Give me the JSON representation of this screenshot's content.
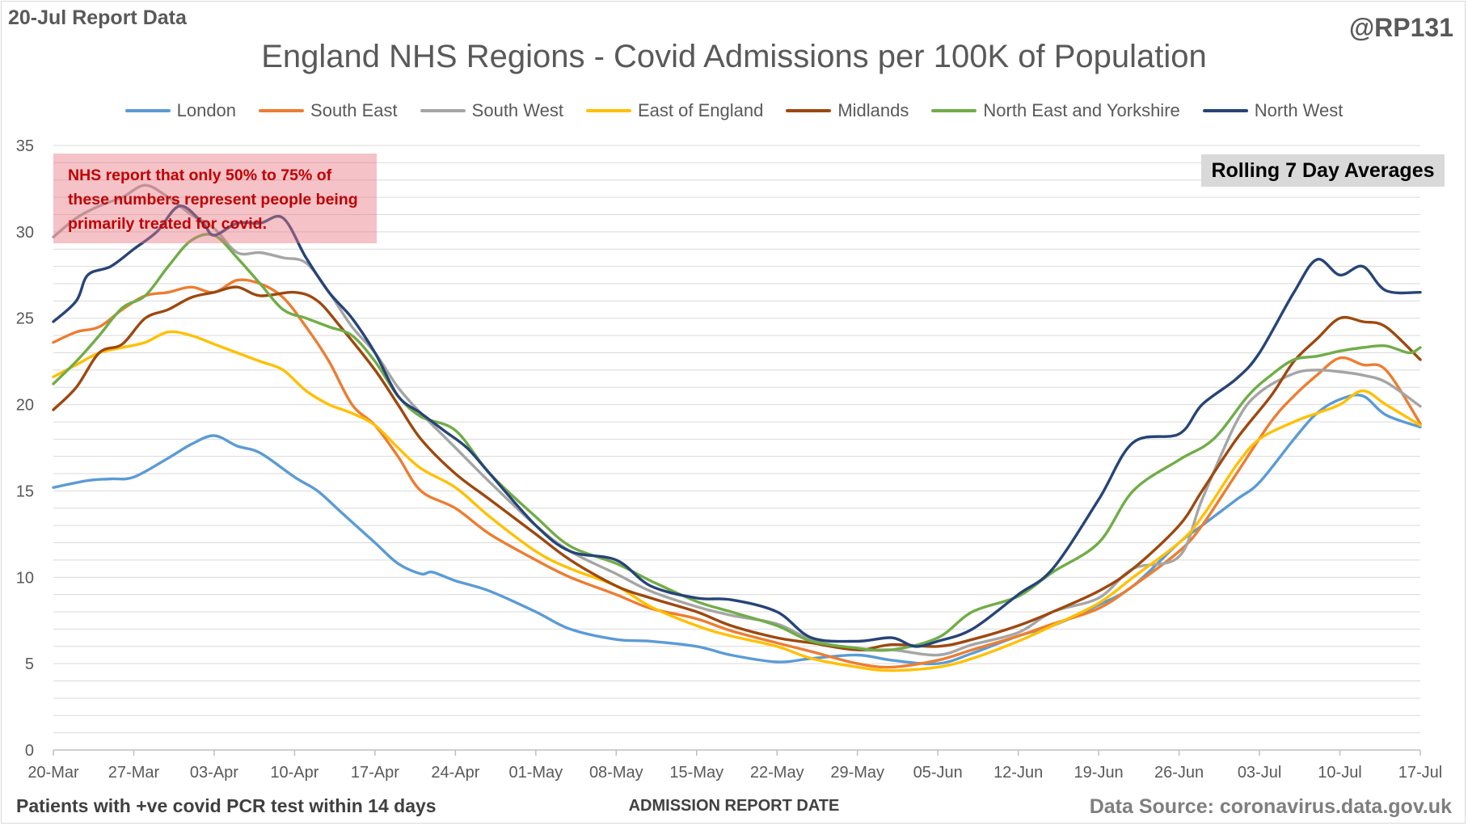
{
  "header": {
    "report_date": "20-Jul Report Data",
    "handle": "@RP131"
  },
  "annotations": {
    "note": "NHS report that only 50% to 75% of these numbers represent people being primarily treated for covid.",
    "rolling": "Rolling 7 Day Averages",
    "footnote": "Patients with +ve covid PCR test within 14 days",
    "source": "Data Source: coronavirus.data.gov.uk"
  },
  "colors": {
    "london": "#5b9bd5",
    "south_east": "#ed7d31",
    "south_west": "#a5a5a5",
    "east_of_england": "#ffc000",
    "midlands": "#9e480e",
    "north_east_yorkshire": "#70ad47",
    "north_west": "#264478",
    "grid": "#d9d9d9",
    "note_text": "#c00000"
  },
  "chart_data": {
    "type": "line",
    "title": "England NHS Regions - Covid Admissions per 100K of Population",
    "xlabel": "ADMISSION REPORT DATE",
    "ylabel": "",
    "ylim": [
      0,
      35
    ],
    "y_ticks": [
      0,
      5,
      10,
      15,
      20,
      25,
      30,
      35
    ],
    "y_gridlines_step": 1,
    "x_range": [
      0,
      119
    ],
    "x_tick_labels": [
      "20-Mar",
      "27-Mar",
      "03-Apr",
      "10-Apr",
      "17-Apr",
      "24-Apr",
      "01-May",
      "08-May",
      "15-May",
      "22-May",
      "29-May",
      "05-Jun",
      "12-Jun",
      "19-Jun",
      "26-Jun",
      "03-Jul",
      "10-Jul",
      "17-Jul"
    ],
    "x_tick_days": [
      0,
      7,
      14,
      21,
      28,
      35,
      42,
      49,
      56,
      63,
      70,
      77,
      84,
      91,
      98,
      105,
      112,
      119
    ],
    "series": [
      {
        "name": "London",
        "color_key": "london",
        "days": [
          0,
          3,
          5,
          7,
          10,
          12,
          14,
          16,
          18,
          21,
          23,
          25,
          28,
          30,
          32,
          33,
          35,
          38,
          42,
          45,
          49,
          52,
          56,
          59,
          63,
          66,
          70,
          73,
          77,
          80,
          84,
          87,
          91,
          94,
          98,
          100,
          103,
          105,
          108,
          110,
          112,
          114,
          116,
          119
        ],
        "values": [
          15.2,
          15.6,
          15.7,
          15.8,
          16.9,
          17.7,
          18.2,
          17.6,
          17.2,
          15.8,
          15.0,
          13.8,
          12.0,
          10.8,
          10.2,
          10.3,
          9.8,
          9.2,
          8.0,
          7.0,
          6.4,
          6.3,
          6.0,
          5.5,
          5.1,
          5.3,
          5.5,
          5.2,
          5.0,
          5.6,
          6.6,
          7.2,
          8.4,
          9.5,
          12.0,
          13.0,
          14.5,
          15.5,
          18.0,
          19.5,
          20.3,
          20.5,
          19.4,
          18.7
        ]
      },
      {
        "name": "South East",
        "color_key": "south_east",
        "days": [
          0,
          2,
          4,
          6,
          8,
          10,
          12,
          14,
          16,
          18,
          20,
          22,
          24,
          26,
          28,
          30,
          32,
          35,
          38,
          42,
          45,
          49,
          52,
          56,
          59,
          63,
          66,
          70,
          73,
          77,
          80,
          84,
          87,
          91,
          94,
          98,
          100,
          103,
          106,
          108,
          110,
          112,
          114,
          116,
          119
        ],
        "values": [
          23.6,
          24.2,
          24.5,
          25.5,
          26.3,
          26.5,
          26.8,
          26.5,
          27.2,
          27.0,
          26.2,
          24.5,
          22.5,
          20.0,
          18.8,
          17.0,
          15.0,
          14.0,
          12.5,
          11.0,
          10.0,
          9.0,
          8.2,
          7.6,
          6.9,
          6.2,
          5.7,
          5.0,
          4.8,
          5.2,
          5.8,
          6.6,
          7.3,
          8.2,
          9.5,
          11.5,
          13.0,
          16.0,
          19.0,
          20.5,
          21.7,
          22.7,
          22.3,
          22.0,
          18.9
        ]
      },
      {
        "name": "South West",
        "color_key": "south_west",
        "days": [
          0,
          2,
          4,
          6,
          8,
          10,
          12,
          14,
          16,
          18,
          20,
          22,
          24,
          26,
          28,
          30,
          32,
          35,
          38,
          42,
          45,
          49,
          52,
          56,
          59,
          63,
          66,
          70,
          73,
          77,
          80,
          84,
          87,
          91,
          94,
          98,
          100,
          103,
          105,
          108,
          110,
          112,
          114,
          116,
          119
        ],
        "values": [
          29.7,
          30.8,
          31.5,
          32.0,
          32.7,
          32.0,
          31.0,
          30.2,
          28.8,
          28.8,
          28.5,
          28.2,
          26.5,
          24.5,
          23.0,
          21.0,
          19.5,
          17.5,
          15.5,
          13.0,
          11.5,
          10.2,
          9.2,
          8.3,
          7.8,
          7.3,
          6.4,
          5.8,
          5.8,
          5.5,
          6.1,
          6.8,
          8.0,
          8.8,
          10.5,
          11.2,
          14.5,
          19.0,
          20.7,
          21.8,
          22.0,
          21.9,
          21.7,
          21.3,
          19.9
        ]
      },
      {
        "name": "East of England",
        "color_key": "east_of_england",
        "days": [
          0,
          2,
          4,
          6,
          8,
          10,
          12,
          14,
          16,
          18,
          20,
          22,
          24,
          26,
          28,
          30,
          32,
          35,
          38,
          42,
          45,
          49,
          52,
          56,
          59,
          63,
          66,
          70,
          73,
          77,
          80,
          84,
          87,
          91,
          94,
          98,
          100,
          103,
          105,
          108,
          110,
          112,
          114,
          116,
          119
        ],
        "values": [
          21.6,
          22.3,
          23.0,
          23.3,
          23.6,
          24.2,
          24.0,
          23.5,
          23.0,
          22.5,
          22.0,
          20.8,
          20.0,
          19.5,
          18.8,
          17.5,
          16.3,
          15.2,
          13.5,
          11.5,
          10.5,
          9.5,
          8.3,
          7.2,
          6.6,
          6.0,
          5.3,
          4.8,
          4.6,
          4.8,
          5.3,
          6.3,
          7.2,
          8.5,
          10.0,
          12.0,
          13.5,
          16.5,
          18.0,
          19.0,
          19.5,
          20.0,
          20.8,
          20.0,
          18.8
        ]
      },
      {
        "name": "Midlands",
        "color_key": "midlands",
        "days": [
          0,
          2,
          4,
          6,
          8,
          10,
          12,
          14,
          16,
          18,
          21,
          23,
          25,
          28,
          30,
          32,
          35,
          38,
          42,
          45,
          49,
          52,
          56,
          59,
          63,
          66,
          70,
          73,
          77,
          80,
          84,
          87,
          91,
          94,
          98,
          100,
          103,
          106,
          108,
          110,
          112,
          114,
          116,
          119
        ],
        "values": [
          19.7,
          21.0,
          23.0,
          23.5,
          25.0,
          25.5,
          26.2,
          26.5,
          26.8,
          26.3,
          26.5,
          26.0,
          24.5,
          22.0,
          20.0,
          18.0,
          16.0,
          14.5,
          12.5,
          11.0,
          9.5,
          8.8,
          8.0,
          7.2,
          6.5,
          6.2,
          5.8,
          6.1,
          6.0,
          6.4,
          7.2,
          8.0,
          9.2,
          10.5,
          13.0,
          15.0,
          18.0,
          20.5,
          22.5,
          23.8,
          25.0,
          24.8,
          24.5,
          22.6
        ]
      },
      {
        "name": "North East and Yorkshire",
        "color_key": "north_east_yorkshire",
        "days": [
          0,
          2,
          4,
          6,
          8,
          10,
          12,
          14,
          16,
          18,
          20,
          22,
          24,
          26,
          28,
          30,
          32,
          35,
          38,
          42,
          45,
          49,
          52,
          56,
          59,
          63,
          66,
          70,
          73,
          77,
          80,
          84,
          87,
          91,
          94,
          98,
          101,
          104,
          106,
          108,
          110,
          112,
          114,
          116,
          118,
          119
        ],
        "values": [
          21.2,
          22.5,
          24.0,
          25.6,
          26.3,
          28.0,
          29.5,
          29.8,
          28.5,
          27.0,
          25.5,
          25.0,
          24.5,
          24.0,
          22.5,
          20.5,
          19.3,
          18.5,
          16.0,
          13.5,
          11.8,
          10.8,
          9.8,
          8.6,
          8.0,
          7.2,
          6.3,
          5.9,
          5.8,
          6.5,
          8.0,
          8.9,
          10.3,
          12.0,
          15.0,
          16.8,
          18.0,
          20.5,
          21.7,
          22.6,
          22.8,
          23.1,
          23.3,
          23.4,
          23.0,
          23.3
        ]
      },
      {
        "name": "North West",
        "color_key": "north_west",
        "days": [
          0,
          2,
          3,
          5,
          7,
          9,
          11,
          13,
          14,
          16,
          18,
          20,
          22,
          24,
          26,
          28,
          30,
          32,
          34,
          36,
          38,
          42,
          45,
          49,
          52,
          56,
          59,
          63,
          66,
          70,
          73,
          75,
          77,
          80,
          84,
          87,
          91,
          94,
          98,
          100,
          103,
          105,
          108,
          110,
          112,
          114,
          116,
          119
        ],
        "values": [
          24.8,
          26.0,
          27.5,
          28.0,
          29.0,
          30.0,
          31.5,
          30.5,
          29.8,
          30.5,
          30.5,
          30.8,
          28.5,
          26.5,
          25.0,
          23.0,
          20.5,
          19.5,
          18.5,
          17.5,
          16.0,
          13.0,
          11.5,
          11.0,
          9.5,
          8.8,
          8.7,
          8.0,
          6.5,
          6.3,
          6.5,
          6.0,
          6.3,
          7.0,
          9.0,
          10.5,
          14.5,
          17.8,
          18.3,
          20.0,
          21.5,
          23.0,
          26.5,
          28.4,
          27.5,
          28.0,
          26.6,
          26.5
        ]
      }
    ]
  }
}
